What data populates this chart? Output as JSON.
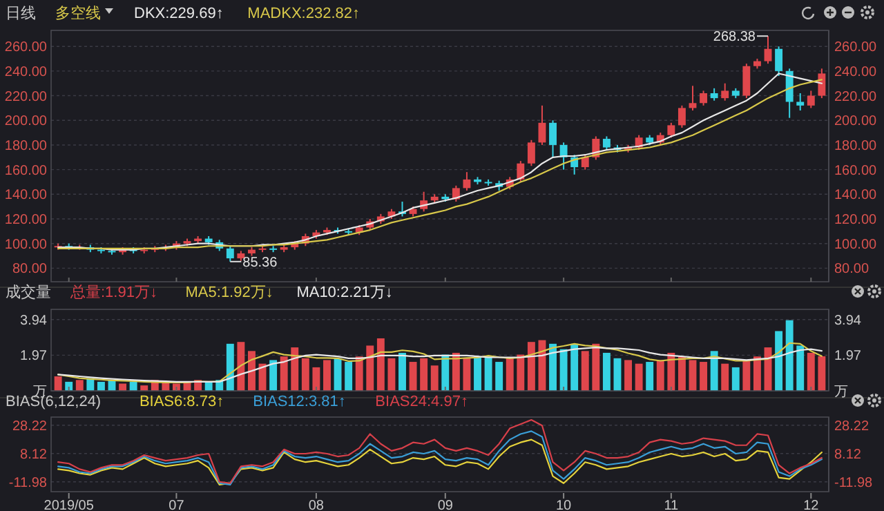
{
  "chart_data": [
    {
      "type": "candlestick",
      "title": "多空线",
      "annotations": [
        "日线",
        "268.38",
        "85.36"
      ],
      "categories": [
        null,
        "2019/05",
        null,
        null,
        null,
        null,
        null,
        null,
        null,
        null,
        null,
        "07",
        null,
        null,
        null,
        null,
        null,
        null,
        null,
        null,
        null,
        null,
        null,
        null,
        "08",
        null,
        null,
        null,
        null,
        null,
        null,
        null,
        null,
        null,
        null,
        null,
        "09",
        null,
        null,
        null,
        null,
        null,
        null,
        null,
        null,
        null,
        null,
        "10",
        null,
        null,
        null,
        null,
        null,
        null,
        null,
        null,
        null,
        "11",
        null,
        null,
        null,
        null,
        null,
        null,
        null,
        null,
        null,
        null,
        null,
        null,
        "12",
        null
      ],
      "ohlc": [
        [
          97,
          100,
          95,
          98
        ],
        [
          98,
          100,
          95,
          97
        ],
        [
          97,
          99,
          95,
          97
        ],
        [
          97,
          99,
          93,
          95
        ],
        [
          95,
          97,
          92,
          94
        ],
        [
          94,
          96,
          91,
          93
        ],
        [
          93,
          97,
          91,
          95
        ],
        [
          95,
          97,
          92,
          94
        ],
        [
          94,
          97,
          92,
          95
        ],
        [
          95,
          98,
          93,
          96
        ],
        [
          96,
          99,
          94,
          97
        ],
        [
          97,
          102,
          95,
          100
        ],
        [
          100,
          104,
          98,
          102
        ],
        [
          102,
          106,
          100,
          104
        ],
        [
          104,
          106,
          99,
          101
        ],
        [
          101,
          103,
          94,
          96
        ],
        [
          96,
          98,
          85.36,
          88
        ],
        [
          88,
          94,
          86,
          92
        ],
        [
          92,
          97,
          90,
          95
        ],
        [
          95,
          98,
          93,
          96
        ],
        [
          96,
          98,
          93,
          95
        ],
        [
          95,
          99,
          93,
          97
        ],
        [
          97,
          102,
          95,
          100
        ],
        [
          100,
          108,
          98,
          106
        ],
        [
          106,
          111,
          104,
          109
        ],
        [
          109,
          113,
          107,
          111
        ],
        [
          111,
          113,
          108,
          110
        ],
        [
          110,
          112,
          107,
          109
        ],
        [
          109,
          115,
          107,
          113
        ],
        [
          113,
          120,
          111,
          118
        ],
        [
          118,
          124,
          116,
          122
        ],
        [
          122,
          128,
          120,
          126
        ],
        [
          126,
          134,
          122,
          124
        ],
        [
          124,
          130,
          122,
          128
        ],
        [
          128,
          142,
          126,
          135
        ],
        [
          135,
          140,
          133,
          138
        ],
        [
          138,
          140,
          134,
          136
        ],
        [
          136,
          147,
          134,
          145
        ],
        [
          145,
          158,
          143,
          152
        ],
        [
          152,
          154,
          148,
          150
        ],
        [
          150,
          152,
          147,
          149
        ],
        [
          149,
          151,
          143,
          146
        ],
        [
          146,
          154,
          144,
          152
        ],
        [
          152,
          167,
          150,
          165
        ],
        [
          165,
          184,
          163,
          182
        ],
        [
          182,
          212,
          180,
          198
        ],
        [
          198,
          200,
          170,
          180
        ],
        [
          180,
          182,
          160,
          170
        ],
        [
          170,
          172,
          156,
          162
        ],
        [
          162,
          172,
          160,
          170
        ],
        [
          170,
          187,
          168,
          185
        ],
        [
          185,
          187,
          176,
          178
        ],
        [
          178,
          180,
          174,
          176
        ],
        [
          176,
          180,
          174,
          178
        ],
        [
          178,
          188,
          176,
          186
        ],
        [
          186,
          188,
          180,
          182
        ],
        [
          182,
          190,
          180,
          188
        ],
        [
          188,
          198,
          186,
          196
        ],
        [
          196,
          212,
          194,
          210
        ],
        [
          210,
          228,
          208,
          214
        ],
        [
          214,
          224,
          212,
          222
        ],
        [
          222,
          226,
          216,
          218
        ],
        [
          218,
          230,
          216,
          224
        ],
        [
          224,
          226,
          218,
          220
        ],
        [
          220,
          246,
          218,
          244
        ],
        [
          244,
          250,
          242,
          248
        ],
        [
          248,
          268.38,
          246,
          258
        ],
        [
          258,
          260,
          236,
          240
        ],
        [
          240,
          242,
          202,
          215
        ],
        [
          215,
          222,
          208,
          212
        ],
        [
          212,
          224,
          210,
          220
        ],
        [
          220,
          242,
          218,
          238
        ]
      ],
      "colors": [
        "#e0474c",
        "#36d2e3",
        "#e0474c",
        "#36d2e3",
        "#36d2e3",
        "#36d2e3",
        "#e0474c",
        "#36d2e3",
        "#e0474c",
        "#e0474c",
        "#e0474c",
        "#e0474c",
        "#e0474c",
        "#e0474c",
        "#36d2e3",
        "#36d2e3",
        "#36d2e3",
        "#e0474c",
        "#e0474c",
        "#e0474c",
        "#36d2e3",
        "#e0474c",
        "#e0474c",
        "#e0474c",
        "#e0474c",
        "#e0474c",
        "#36d2e3",
        "#36d2e3",
        "#e0474c",
        "#e0474c",
        "#e0474c",
        "#e0474c",
        "#36d2e3",
        "#e0474c",
        "#e0474c",
        "#e0474c",
        "#36d2e3",
        "#e0474c",
        "#e0474c",
        "#36d2e3",
        "#36d2e3",
        "#36d2e3",
        "#e0474c",
        "#e0474c",
        "#e0474c",
        "#e0474c",
        "#36d2e3",
        "#36d2e3",
        "#36d2e3",
        "#e0474c",
        "#e0474c",
        "#36d2e3",
        "#36d2e3",
        "#e0474c",
        "#e0474c",
        "#36d2e3",
        "#e0474c",
        "#e0474c",
        "#e0474c",
        "#e0474c",
        "#e0474c",
        "#36d2e3",
        "#e0474c",
        "#36d2e3",
        "#e0474c",
        "#e0474c",
        "#e0474c",
        "#36d2e3",
        "#36d2e3",
        "#36d2e3",
        "#e0474c",
        "#e0474c"
      ],
      "series": [
        {
          "type": "line",
          "name": "DKX:229.69↑",
          "color": "#e8e8e8",
          "values": [
            97,
            97,
            97,
            96,
            96,
            95,
            95,
            95,
            96,
            96,
            97,
            98,
            99,
            100,
            100,
            99,
            98,
            98,
            98,
            99,
            99,
            100,
            101,
            103,
            106,
            108,
            110,
            112,
            114,
            116,
            119,
            122,
            125,
            129,
            131,
            133,
            135,
            137,
            140,
            143,
            145,
            147,
            150,
            153,
            158,
            165,
            170,
            171,
            171,
            172,
            174,
            176,
            177,
            178,
            179,
            181,
            183,
            187,
            190,
            195,
            200,
            204,
            208,
            212,
            216,
            222,
            230,
            238,
            236,
            234,
            232,
            230
          ]
        },
        {
          "type": "line",
          "name": "MADKX:232.82↑",
          "color": "#d8c84a",
          "values": [
            96,
            96,
            96,
            96,
            96,
            96,
            96,
            96,
            96,
            96,
            96,
            97,
            97,
            97,
            98,
            98,
            98,
            98,
            98,
            98,
            99,
            99,
            100,
            101,
            102,
            103,
            105,
            107,
            109,
            111,
            114,
            117,
            119,
            121,
            123,
            125,
            127,
            130,
            132,
            135,
            138,
            142,
            146,
            150,
            153,
            157,
            161,
            165,
            168,
            170,
            172,
            174,
            175,
            176,
            177,
            178,
            180,
            182,
            185,
            188,
            192,
            196,
            200,
            204,
            208,
            213,
            218,
            222,
            226,
            229,
            231,
            233
          ]
        }
      ],
      "ylim": [
        69,
        273
      ],
      "yticks": [
        {
          "value": 80,
          "label": "80.00"
        },
        {
          "value": 100,
          "label": "100.00"
        },
        {
          "value": 120,
          "label": "120.00"
        },
        {
          "value": 140,
          "label": "140.00"
        },
        {
          "value": 160,
          "label": "160.00"
        },
        {
          "value": 180,
          "label": "180.00"
        },
        {
          "value": 200,
          "label": "200.00"
        },
        {
          "value": 220,
          "label": "220.00"
        },
        {
          "value": 240,
          "label": "240.00"
        },
        {
          "value": 260,
          "label": "260.00"
        }
      ],
      "y2lim": [
        69,
        273
      ],
      "y2ticks": [
        {
          "value": 80,
          "label": "80.00"
        },
        {
          "value": 100,
          "label": "100.00"
        },
        {
          "value": 120,
          "label": "120.00"
        },
        {
          "value": 140,
          "label": "140.00"
        },
        {
          "value": 160,
          "label": "160.00"
        },
        {
          "value": 180,
          "label": "180.00"
        },
        {
          "value": 200,
          "label": "200.00"
        },
        {
          "value": 220,
          "label": "220.00"
        },
        {
          "value": 240,
          "label": "240.00"
        },
        {
          "value": 260,
          "label": "260.00"
        }
      ],
      "grid": "y",
      "legend": "top left",
      "tick_labels": "y"
    },
    {
      "type": "bar",
      "title": "成交量",
      "categories": [
        null,
        "2019/05",
        null,
        null,
        null,
        null,
        null,
        null,
        null,
        null,
        null,
        "07",
        null,
        null,
        null,
        null,
        null,
        null,
        null,
        null,
        null,
        null,
        null,
        null,
        "08",
        null,
        null,
        null,
        null,
        null,
        null,
        null,
        null,
        null,
        null,
        null,
        "09",
        null,
        null,
        null,
        null,
        null,
        null,
        null,
        null,
        null,
        null,
        "10",
        null,
        null,
        null,
        null,
        null,
        null,
        null,
        null,
        null,
        "11",
        null,
        null,
        null,
        null,
        null,
        null,
        null,
        null,
        null,
        null,
        null,
        null,
        "12",
        null
      ],
      "series": [
        {
          "name": "总量:1.91万↓",
          "color": "#d8404a",
          "colors": [
            "#e0474c",
            "#36d2e3",
            "#e0474c",
            "#36d2e3",
            "#36d2e3",
            "#36d2e3",
            "#e0474c",
            "#36d2e3",
            "#e0474c",
            "#e0474c",
            "#e0474c",
            "#e0474c",
            "#e0474c",
            "#e0474c",
            "#36d2e3",
            "#36d2e3",
            "#36d2e3",
            "#e0474c",
            "#e0474c",
            "#e0474c",
            "#36d2e3",
            "#e0474c",
            "#e0474c",
            "#e0474c",
            "#e0474c",
            "#e0474c",
            "#36d2e3",
            "#36d2e3",
            "#e0474c",
            "#e0474c",
            "#e0474c",
            "#e0474c",
            "#36d2e3",
            "#e0474c",
            "#e0474c",
            "#e0474c",
            "#36d2e3",
            "#e0474c",
            "#e0474c",
            "#36d2e3",
            "#36d2e3",
            "#36d2e3",
            "#e0474c",
            "#e0474c",
            "#e0474c",
            "#e0474c",
            "#36d2e3",
            "#36d2e3",
            "#36d2e3",
            "#e0474c",
            "#e0474c",
            "#36d2e3",
            "#36d2e3",
            "#e0474c",
            "#e0474c",
            "#36d2e3",
            "#e0474c",
            "#e0474c",
            "#e0474c",
            "#e0474c",
            "#e0474c",
            "#36d2e3",
            "#e0474c",
            "#36d2e3",
            "#e0474c",
            "#e0474c",
            "#e0474c",
            "#36d2e3",
            "#36d2e3",
            "#36d2e3",
            "#e0474c",
            "#e0474c"
          ],
          "values": [
            0.8,
            0.5,
            0.6,
            0.7,
            0.5,
            0.6,
            0.4,
            0.5,
            0.3,
            0.6,
            0.5,
            0.4,
            0.5,
            0.6,
            0.5,
            0.6,
            2.6,
            2.7,
            2.2,
            1.5,
            1.7,
            1.9,
            2.4,
            1.8,
            1.3,
            1.7,
            1.8,
            1.6,
            1.9,
            2.5,
            2.9,
            1.8,
            2.1,
            1.6,
            1.8,
            1.4,
            2.0,
            2.1,
            1.8,
            1.9,
            1.9,
            1.6,
            1.8,
            2.0,
            2.7,
            2.8,
            2.6,
            2.3,
            2.6,
            2.2,
            2.6,
            2.1,
            1.8,
            1.7,
            1.5,
            1.6,
            1.7,
            2.1,
            1.9,
            1.7,
            1.6,
            2.2,
            1.5,
            1.3,
            1.7,
            1.9,
            2.4,
            3.3,
            3.9,
            2.5,
            2.1,
            1.91
          ]
        },
        {
          "type": "line",
          "name": "MA5:1.92万↓",
          "color": "#d8c84a",
          "values": [
            0.9,
            0.8,
            0.7,
            0.65,
            0.62,
            0.58,
            0.56,
            0.54,
            0.5,
            0.48,
            0.46,
            0.46,
            0.46,
            0.52,
            0.5,
            0.52,
            0.96,
            1.4,
            1.72,
            1.92,
            2.14,
            2.0,
            1.94,
            1.9,
            1.82,
            1.82,
            1.8,
            1.64,
            1.66,
            1.9,
            2.14,
            2.14,
            2.24,
            2.18,
            2.04,
            1.74,
            1.78,
            1.78,
            1.82,
            1.84,
            1.94,
            1.86,
            1.8,
            1.84,
            2.0,
            2.18,
            2.38,
            2.48,
            2.6,
            2.5,
            2.46,
            2.36,
            2.26,
            2.08,
            1.94,
            1.74,
            1.66,
            1.72,
            1.76,
            1.8,
            1.8,
            1.9,
            1.78,
            1.66,
            1.66,
            1.72,
            1.76,
            2.12,
            2.64,
            2.6,
            2.2,
            1.92
          ]
        },
        {
          "type": "line",
          "name": "MA10:2.21万↓",
          "color": "#e8e8e8",
          "values": [
            0.9,
            0.85,
            0.8,
            0.75,
            0.7,
            0.66,
            0.63,
            0.6,
            0.57,
            0.55,
            0.53,
            0.5,
            0.5,
            0.5,
            0.5,
            0.5,
            0.7,
            0.92,
            1.1,
            1.3,
            1.5,
            1.6,
            1.8,
            1.95,
            2.0,
            1.95,
            1.9,
            1.8,
            1.8,
            1.85,
            1.95,
            1.95,
            1.95,
            1.9,
            1.9,
            1.95,
            1.95,
            1.95,
            1.95,
            1.9,
            1.85,
            1.85,
            1.85,
            1.85,
            1.9,
            1.95,
            2.1,
            2.2,
            2.3,
            2.35,
            2.4,
            2.35,
            2.35,
            2.3,
            2.25,
            2.1,
            2.0,
            1.95,
            1.9,
            1.85,
            1.8,
            1.8,
            1.8,
            1.75,
            1.7,
            1.75,
            1.8,
            1.9,
            2.1,
            2.25,
            2.3,
            2.21
          ]
        }
      ],
      "ylim": [
        0,
        4.5
      ],
      "yticks": [
        {
          "value": 0,
          "label": "万"
        },
        1.97,
        3.94
      ],
      "y2lim": [
        0,
        4.5
      ],
      "y2ticks": [
        {
          "value": 0,
          "label": "万"
        },
        1.97,
        3.94
      ],
      "grid": "y",
      "legend": "top left",
      "tick_labels": "y"
    },
    {
      "type": "line",
      "title": "BIAS(6,12,24)",
      "categories": [
        null,
        "2019/05",
        null,
        null,
        null,
        null,
        null,
        null,
        null,
        null,
        null,
        "07",
        null,
        null,
        null,
        null,
        null,
        null,
        null,
        null,
        null,
        null,
        null,
        null,
        "08",
        null,
        null,
        null,
        null,
        null,
        null,
        null,
        null,
        null,
        null,
        null,
        "09",
        null,
        null,
        null,
        null,
        null,
        null,
        null,
        null,
        null,
        null,
        "10",
        null,
        null,
        null,
        null,
        null,
        null,
        null,
        null,
        null,
        "11",
        null,
        null,
        null,
        null,
        null,
        null,
        null,
        null,
        null,
        null,
        null,
        null,
        "12",
        null
      ],
      "series": [
        {
          "name": "BIAS6:8.73↑",
          "color": "#e6d33c",
          "values": [
            -3,
            -4,
            -6,
            -7,
            -4,
            -2,
            -3,
            1,
            5,
            1,
            -1,
            0,
            1,
            3,
            -2,
            -14,
            -13,
            -3,
            -2,
            -4,
            -2,
            9,
            4,
            2,
            3,
            1,
            -1,
            0,
            5,
            11,
            6,
            1,
            2,
            5,
            4,
            6,
            0,
            -1,
            2,
            1,
            -3,
            6,
            13,
            16,
            18,
            14,
            -8,
            -13,
            -6,
            2,
            0,
            -3,
            -2,
            -1,
            2,
            4,
            6,
            8,
            6,
            7,
            9,
            6,
            8,
            3,
            4,
            10,
            9,
            -9,
            -10,
            -4,
            2,
            9
          ]
        },
        {
          "name": "BIAS12:3.81↑",
          "color": "#3a9fd8",
          "values": [
            -1,
            -2,
            -5,
            -6,
            -3,
            -1,
            -1,
            2,
            6,
            3,
            1,
            2,
            3,
            5,
            2,
            -13,
            -14,
            -2,
            -1,
            -3,
            0,
            10,
            6,
            5,
            6,
            4,
            2,
            3,
            8,
            15,
            10,
            5,
            6,
            9,
            8,
            10,
            4,
            3,
            5,
            4,
            0,
            10,
            18,
            22,
            24,
            20,
            -4,
            -10,
            -3,
            5,
            3,
            0,
            1,
            2,
            5,
            9,
            11,
            13,
            11,
            12,
            15,
            12,
            13,
            8,
            9,
            16,
            15,
            -5,
            -8,
            -3,
            0,
            4
          ]
        },
        {
          "name": "BIAS24:4.97↑",
          "color": "#d8404a",
          "values": [
            2,
            1,
            -3,
            -5,
            -2,
            0,
            0,
            3,
            7,
            5,
            3,
            4,
            5,
            7,
            8,
            -12,
            -13,
            -1,
            0,
            -1,
            2,
            11,
            8,
            8,
            9,
            8,
            6,
            7,
            12,
            22,
            15,
            10,
            12,
            16,
            15,
            18,
            12,
            10,
            12,
            10,
            7,
            15,
            26,
            29,
            32,
            28,
            2,
            -4,
            2,
            10,
            8,
            5,
            5,
            6,
            9,
            16,
            18,
            17,
            15,
            16,
            19,
            18,
            17,
            14,
            14,
            22,
            21,
            0,
            -6,
            -2,
            1,
            5
          ]
        }
      ],
      "ylim": [
        -19,
        34
      ],
      "yticks": [
        -11.98,
        8.12,
        28.22
      ],
      "y2lim": [
        -19,
        34
      ],
      "y2ticks": [
        -11.98,
        8.12,
        28.22
      ],
      "grid": "y",
      "legend": "top left"
    }
  ]
}
